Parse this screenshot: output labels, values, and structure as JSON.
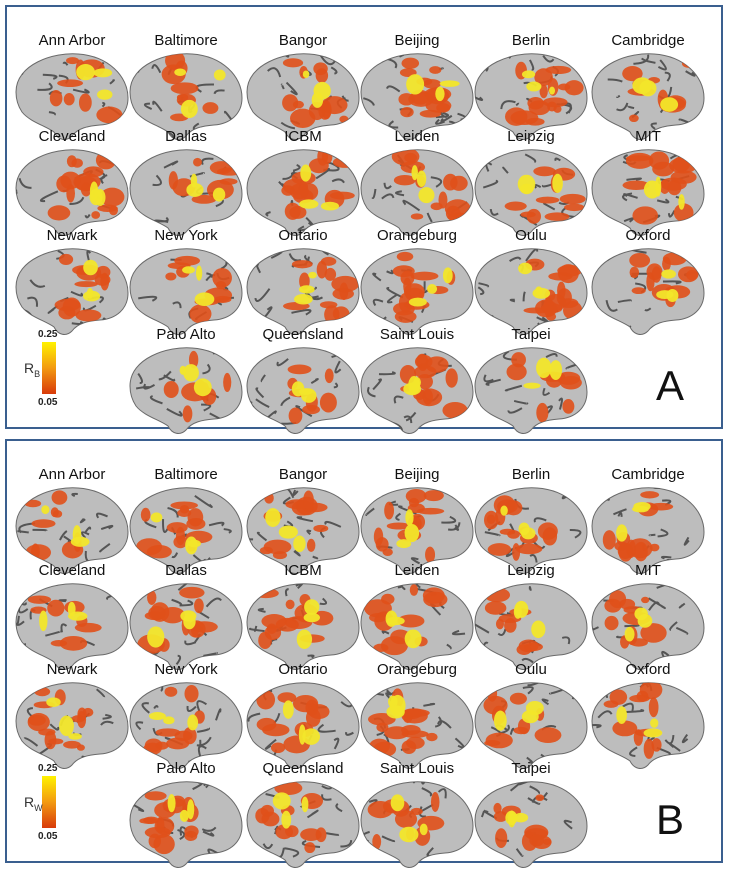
{
  "panels": [
    {
      "letter": "A",
      "labels": [
        "Ann Arbor",
        "Baltimore",
        "Bangor",
        "Beijing",
        "Berlin",
        "Cambridge",
        "Cleveland",
        "Dallas",
        "ICBM",
        "Leiden",
        "Leipzig",
        "MIT",
        "Newark",
        "New York",
        "Ontario",
        "Orangeburg",
        "Oulu",
        "Oxford",
        "Palo Alto",
        "Queensland",
        "Saint Louis",
        "Taipei"
      ],
      "colorbar": {
        "symbol": "R",
        "subscript": "B",
        "max": "0.25",
        "min": "0.05"
      }
    },
    {
      "letter": "B",
      "labels": [
        "Ann Arbor",
        "Baltimore",
        "Bangor",
        "Beijing",
        "Berlin",
        "Cambridge",
        "Cleveland",
        "Dallas",
        "ICBM",
        "Leiden",
        "Leipzig",
        "MIT",
        "Newark",
        "New York",
        "Ontario",
        "Orangeburg",
        "Oulu",
        "Oxford",
        "Palo Alto",
        "Queensland",
        "Saint Louis",
        "Taipei"
      ],
      "colorbar": {
        "symbol": "R",
        "subscript": "W",
        "max": "0.25",
        "min": "0.05"
      }
    }
  ]
}
